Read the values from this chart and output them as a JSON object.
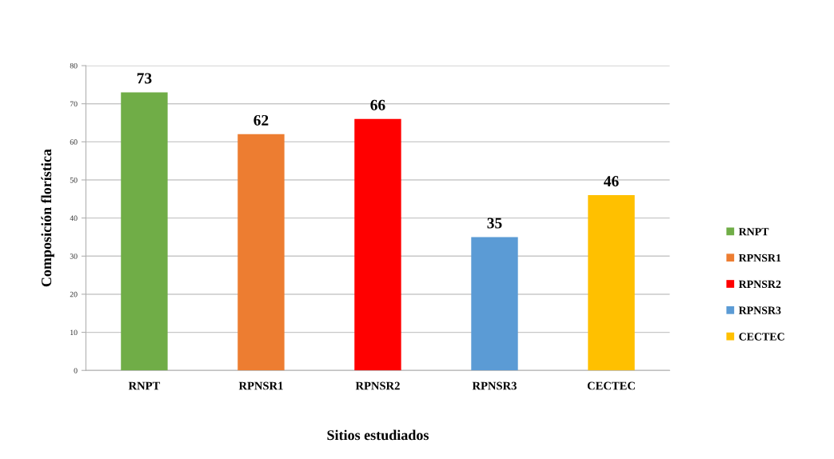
{
  "chart_data": {
    "type": "bar",
    "xlabel": "Sitios estudiados",
    "ylabel": "Composición florística",
    "categories": [
      "RNPT",
      "RPNSR1",
      "RPNSR2",
      "RPNSR3",
      "CECTEC"
    ],
    "series": [
      {
        "name": "RNPT",
        "color": "#70ad47",
        "values": [
          73,
          null,
          null,
          null,
          null
        ]
      },
      {
        "name": "RPNSR1",
        "color": "#ed7d31",
        "values": [
          null,
          62,
          null,
          null,
          null
        ]
      },
      {
        "name": "RPNSR2",
        "color": "#ff0000",
        "values": [
          null,
          null,
          66,
          null,
          null
        ]
      },
      {
        "name": "RPNSR3",
        "color": "#5b9bd5",
        "values": [
          null,
          null,
          null,
          35,
          null
        ]
      },
      {
        "name": "CECTEC",
        "color": "#ffc000",
        "values": [
          null,
          null,
          null,
          null,
          46
        ]
      }
    ],
    "ylim": [
      0,
      80
    ],
    "yticks": [
      0,
      10,
      20,
      30,
      40,
      50,
      60,
      70,
      80
    ],
    "grid": "y",
    "legend": "right",
    "data_labels": true
  }
}
